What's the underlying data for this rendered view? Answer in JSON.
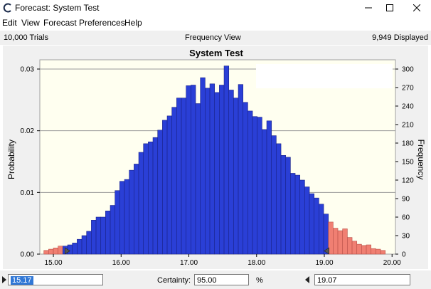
{
  "window": {
    "title": "Forecast: System Test"
  },
  "menu": {
    "items": [
      "Edit",
      "View",
      "Forecast",
      "Preferences",
      "Help"
    ]
  },
  "infobar": {
    "trials": "10,000 Trials",
    "view": "Frequency View",
    "displayed": "9,949 Displayed"
  },
  "controls": {
    "lower_value": "15.17",
    "certainty_label": "Certainty:",
    "certainty_value": "95.00",
    "percent": "%",
    "upper_value": "19.07"
  },
  "colors": {
    "in_range": "#2a3fd6",
    "out_of_range": "#f07f72",
    "plot_background": "#fffff0"
  },
  "chart_data": {
    "type": "bar",
    "title": "System Test",
    "ylabel": "Probability",
    "y2label": "Frequency",
    "xlim": [
      14.8,
      20.05
    ],
    "ylim": [
      0,
      0.0315
    ],
    "y2lim": [
      0,
      315
    ],
    "x_ticks": [
      "15.00",
      "16.00",
      "17.00",
      "18.00",
      "19.00",
      "20.00"
    ],
    "y_ticks": [
      "0.00",
      "0.01",
      "0.02",
      "0.03"
    ],
    "y2_ticks": [
      "0",
      "30",
      "60",
      "90",
      "120",
      "150",
      "180",
      "210",
      "240",
      "270",
      "300"
    ],
    "bin_start": 14.86,
    "bin_width": 0.07,
    "certainty_range": [
      15.17,
      19.07
    ],
    "frequencies": [
      6,
      8,
      10,
      13,
      13,
      15,
      18,
      24,
      30,
      37,
      55,
      60,
      60,
      70,
      79,
      103,
      118,
      121,
      136,
      146,
      165,
      179,
      182,
      189,
      201,
      217,
      224,
      238,
      253,
      253,
      273,
      274,
      244,
      286,
      269,
      276,
      262,
      274,
      305,
      266,
      253,
      275,
      246,
      232,
      223,
      222,
      202,
      216,
      192,
      179,
      160,
      157,
      131,
      128,
      120,
      109,
      98,
      91,
      81,
      65,
      52,
      42,
      38,
      41,
      27,
      21,
      16,
      14,
      15,
      9,
      8,
      6
    ]
  }
}
